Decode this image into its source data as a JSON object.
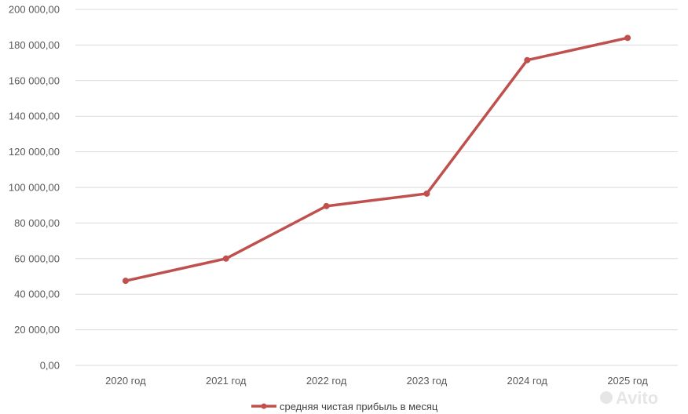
{
  "chart_data": {
    "type": "line",
    "categories": [
      "2020 год",
      "2021 год",
      "2022 год",
      "2023 год",
      "2024 год",
      "2025 год"
    ],
    "series": [
      {
        "name": "средняя чистая прибыль в месяц",
        "values": [
          47500,
          60000,
          89500,
          96500,
          171500,
          184000
        ],
        "color": "#c0504d"
      }
    ],
    "ylim": [
      0,
      200000
    ],
    "yticks": [
      0,
      20000,
      40000,
      60000,
      80000,
      100000,
      120000,
      140000,
      160000,
      180000,
      200000
    ],
    "ytick_labels": [
      "0,00",
      "20 000,00",
      "40 000,00",
      "60 000,00",
      "80 000,00",
      "100 000,00",
      "120 000,00",
      "140 000,00",
      "160 000,00",
      "180 000,00",
      "200 000,00"
    ],
    "grid": true,
    "legend": "bottom-center"
  },
  "watermark": {
    "text": "Avito"
  },
  "colors": {
    "grid": "#d9d9d9",
    "axis_text": "#595959",
    "series": "#c0504d"
  }
}
